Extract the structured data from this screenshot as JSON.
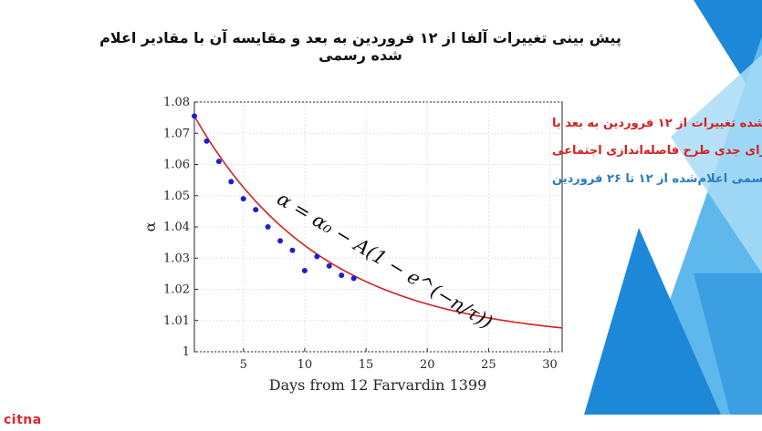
{
  "slide": {
    "title": "پیش بینی تغییرات آلفا از ۱۲ فروردین به بعد و مقایسه آن با مقادیر اعلام شده رسمی",
    "logo_text": "citna",
    "accent_colors": [
      "#1e88d8",
      "#5fb8ec",
      "#a9dcf7"
    ]
  },
  "chart_data": {
    "type": "scatter",
    "xlabel": "Days from 12 Farvardin 1399",
    "ylabel": "α",
    "xlim": [
      1,
      31
    ],
    "ylim": [
      1.0,
      1.08
    ],
    "xticks": [
      5,
      10,
      15,
      20,
      25,
      30
    ],
    "yticks": [
      1,
      1.01,
      1.02,
      1.03,
      1.04,
      1.05,
      1.06,
      1.07,
      1.08
    ],
    "ytick_labels": [
      "1",
      "1.01",
      "1.02",
      "1.03",
      "1.04",
      "1.05",
      "1.06",
      "1.07",
      "1.08"
    ],
    "grid": true,
    "legend_position": "top-right",
    "legend_lines": [
      {
        "text": "۱- الگوی پیش‌بینی‌شده تغییرات از ۱۲ فروردین به بعد با",
        "color": "#d42020"
      },
      {
        "text": "فرض اجرای جدی طرح فاصله‌اندازی اجتماعی",
        "color": "#d42020"
      },
      {
        "text": "۲- مقادیر رسمی اعلام‌شده از ۱۲ تا ۲۶ فروردین",
        "color": "#2a7cbf"
      }
    ],
    "formula_text": "α = α₀ − A(1 − e^(−n/τ))",
    "series": [
      {
        "kind": "line",
        "color": "#d42020",
        "model": {
          "alpha0": 1.0755,
          "A": 0.072,
          "tau": 10.5,
          "x_start": 1
        }
      },
      {
        "kind": "scatter",
        "color": "#1f1fd0",
        "x": [
          1,
          2,
          3,
          4,
          5,
          6,
          7,
          8,
          9,
          10,
          11,
          12,
          13,
          14
        ],
        "y": [
          1.0755,
          1.0675,
          1.061,
          1.0545,
          1.049,
          1.0455,
          1.04,
          1.0355,
          1.0325,
          1.026,
          1.0305,
          1.0275,
          1.0245,
          1.0235
        ]
      }
    ]
  }
}
